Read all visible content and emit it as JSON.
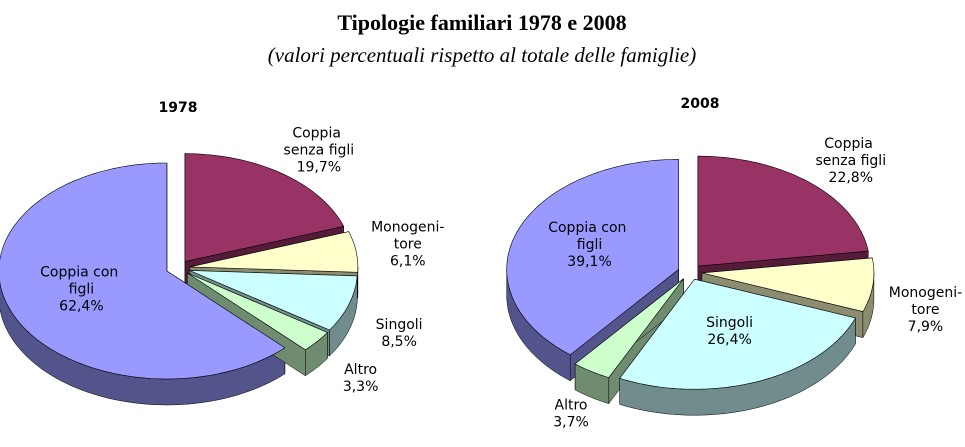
{
  "title": "Tipologie familiari 1978 e 2008",
  "subtitle": "(valori percentuali rispetto al totale delle famiglie)",
  "chart_data": [
    {
      "type": "pie",
      "title": "1978",
      "categories": [
        "Coppia con figli",
        "Coppia senza figli",
        "Monogeni-tore",
        "Singoli",
        "Altro"
      ],
      "values": [
        62.4,
        19.7,
        6.1,
        8.5,
        3.3
      ],
      "value_labels": [
        "62,4%",
        "19,7%",
        "6,1%",
        "8,5%",
        "3,3%"
      ],
      "colors": [
        "#9999ff",
        "#993366",
        "#ffffcc",
        "#ccffff",
        "#ccffcc"
      ]
    },
    {
      "type": "pie",
      "title": "2008",
      "categories": [
        "Coppia con figli",
        "Coppia senza figli",
        "Monogeni-tore",
        "Singoli",
        "Altro"
      ],
      "values": [
        39.1,
        22.8,
        7.9,
        26.4,
        3.7
      ],
      "value_labels": [
        "39,1%",
        "22,8%",
        "7,9%",
        "26,4%",
        "3,7%"
      ],
      "colors": [
        "#9999ff",
        "#993366",
        "#ffffcc",
        "#ccffff",
        "#ccffcc"
      ]
    }
  ]
}
